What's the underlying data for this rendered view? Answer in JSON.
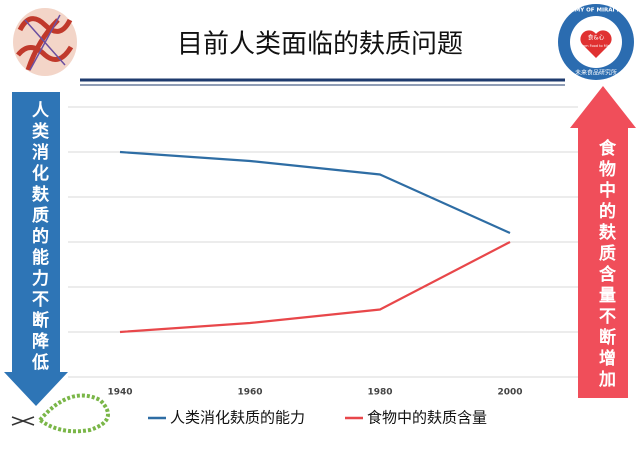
{
  "chart_data": {
    "type": "line",
    "title": "目前人类面临的麸质问题",
    "x": [
      1940,
      1960,
      1980,
      2000
    ],
    "xlim": [
      1940,
      2000
    ],
    "xticks": [
      1940,
      1960,
      1980,
      2000
    ],
    "ylim": [
      0,
      6
    ],
    "yticks": [
      0,
      1,
      2,
      3,
      4,
      5,
      6
    ],
    "grid": true,
    "legend": "bottom",
    "series": [
      {
        "name": "人类消化麸质的能力",
        "color": "#2e6da4",
        "values": [
          5,
          4.8,
          4.5,
          3.2
        ]
      },
      {
        "name": "食物中的麸质含量",
        "color": "#e8474a",
        "values": [
          1,
          1.2,
          1.5,
          3
        ]
      }
    ]
  },
  "left_arrow_label": "人类消化麸质的能力不断降低",
  "right_arrow_label": "食物中的麸质含量不断增加",
  "logo": {
    "ring_text": "ACADEMY OF MIRAI FOODS",
    "chinese": "未来食品研究所",
    "heart": "食&心",
    "tagline": "From Food to Mind"
  }
}
